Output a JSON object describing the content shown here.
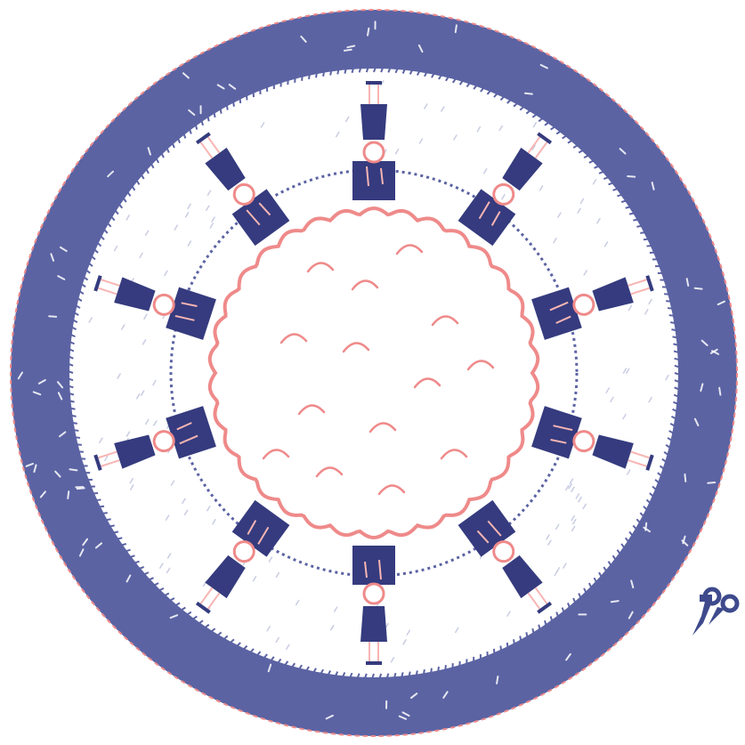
{
  "illustration": {
    "subject": "circular-cut-out-artwork",
    "palette": {
      "indigo": "#5b63a3",
      "indigo_dark": "#353b7e",
      "coral": "#ef8a8a",
      "coral_light": "#f7b5b3",
      "paper": "#ffffff",
      "grass_mark": "#c9cde3",
      "cut_line": "#ee8a8a",
      "scissors": "#3e4a8c"
    },
    "figure_count": 10,
    "trunk_count": 10,
    "icons": [
      "scissors-icon"
    ]
  }
}
